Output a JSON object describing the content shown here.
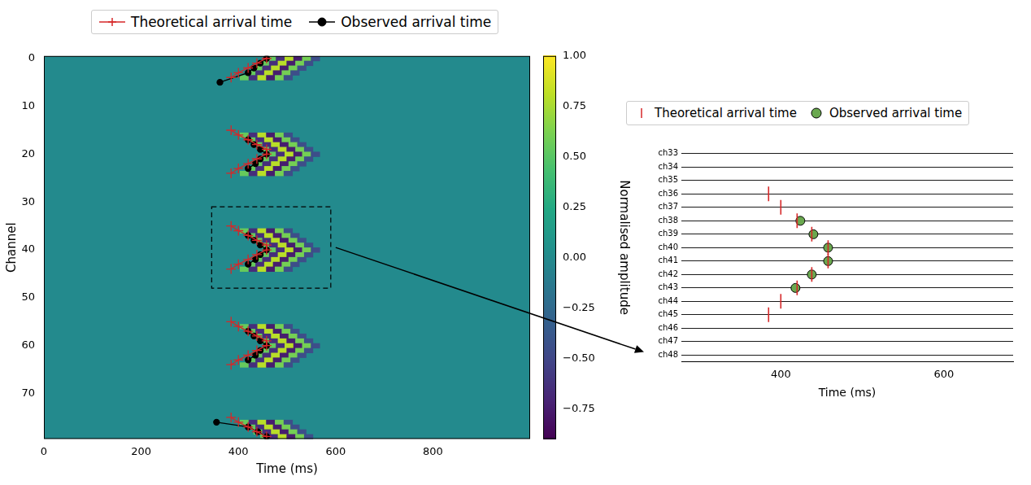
{
  "chart_data": [
    {
      "type": "heatmap",
      "xlabel": "Time (ms)",
      "ylabel": "Channel",
      "xlim": [
        0,
        1000
      ],
      "xticks": [
        0,
        200,
        400,
        600,
        800
      ],
      "ylim": [
        79.5,
        -0.5
      ],
      "yticks": [
        0,
        10,
        20,
        30,
        40,
        50,
        60,
        70
      ],
      "legend": "top",
      "fill_value": 0,
      "colorbar": {
        "label": "Normalised amplitude",
        "range": [
          -0.9,
          1
        ],
        "ticks": [
          {
            "value": -0.75,
            "label": "−0.75"
          },
          {
            "value": -0.5,
            "label": "−0.50"
          },
          {
            "value": -0.25,
            "label": "−0.25"
          },
          {
            "value": 0,
            "label": "0.00"
          },
          0.25,
          {
            "value": 0.5,
            "label": "0.50"
          },
          0.75,
          {
            "value": 1,
            "label": "1.00"
          }
        ]
      },
      "cells": [
        {
          "channel": 0,
          "times": [
            468,
            486,
            504,
            522,
            540,
            558
          ],
          "values": [
            0.55,
            -0.65,
            0.8,
            -0.75,
            0.6,
            -0.45
          ]
        },
        {
          "channel": 1,
          "times": [
            454,
            472,
            490,
            508,
            526,
            544
          ],
          "values": [
            0.55,
            -0.65,
            0.8,
            -0.75,
            0.6,
            -0.45
          ]
        },
        {
          "channel": 2,
          "times": [
            440,
            458,
            476,
            494,
            512,
            530
          ],
          "values": [
            0.55,
            -0.65,
            0.8,
            -0.75,
            0.6,
            -0.45
          ]
        },
        {
          "channel": 3,
          "times": [
            426,
            444,
            462,
            480,
            498,
            516
          ],
          "values": [
            0.55,
            -0.65,
            0.8,
            -0.75,
            0.6,
            -0.45
          ]
        },
        {
          "channel": 4,
          "times": [
            412,
            430,
            448,
            466,
            484,
            502
          ],
          "values": [
            0.55,
            -0.65,
            0.8,
            -0.75,
            0.6,
            -0.45
          ]
        },
        {
          "channel": 16,
          "times": [
            412,
            430,
            448,
            466,
            484,
            502
          ],
          "values": [
            0.55,
            -0.65,
            0.8,
            -0.75,
            0.6,
            -0.45
          ]
        },
        {
          "channel": 17,
          "times": [
            426,
            444,
            462,
            480,
            498,
            516
          ],
          "values": [
            0.55,
            -0.65,
            0.8,
            -0.75,
            0.6,
            -0.45
          ]
        },
        {
          "channel": 18,
          "times": [
            440,
            458,
            476,
            494,
            512,
            530
          ],
          "values": [
            0.55,
            -0.65,
            0.8,
            -0.75,
            0.6,
            -0.45
          ]
        },
        {
          "channel": 19,
          "times": [
            454,
            472,
            490,
            508,
            526,
            544
          ],
          "values": [
            0.55,
            -0.65,
            0.8,
            -0.75,
            0.6,
            -0.45
          ]
        },
        {
          "channel": 20,
          "times": [
            468,
            486,
            504,
            522,
            540,
            558
          ],
          "values": [
            0.55,
            -0.65,
            0.8,
            -0.75,
            0.6,
            -0.45
          ]
        },
        {
          "channel": 21,
          "times": [
            454,
            472,
            490,
            508,
            526,
            544
          ],
          "values": [
            0.55,
            -0.65,
            0.8,
            -0.75,
            0.6,
            -0.45
          ]
        },
        {
          "channel": 22,
          "times": [
            440,
            458,
            476,
            494,
            512,
            530
          ],
          "values": [
            0.55,
            -0.65,
            0.8,
            -0.75,
            0.6,
            -0.45
          ]
        },
        {
          "channel": 23,
          "times": [
            426,
            444,
            462,
            480,
            498,
            516
          ],
          "values": [
            0.55,
            -0.65,
            0.8,
            -0.75,
            0.6,
            -0.45
          ]
        },
        {
          "channel": 24,
          "times": [
            412,
            430,
            448,
            466,
            484,
            502
          ],
          "values": [
            0.55,
            -0.65,
            0.8,
            -0.75,
            0.6,
            -0.45
          ]
        },
        {
          "channel": 36,
          "times": [
            412,
            430,
            448,
            466,
            484,
            502
          ],
          "values": [
            0.55,
            -0.65,
            0.8,
            -0.75,
            0.6,
            -0.45
          ]
        },
        {
          "channel": 37,
          "times": [
            426,
            444,
            462,
            480,
            498,
            516
          ],
          "values": [
            0.55,
            -0.65,
            0.8,
            -0.75,
            0.6,
            -0.45
          ]
        },
        {
          "channel": 38,
          "times": [
            440,
            458,
            476,
            494,
            512,
            530
          ],
          "values": [
            0.55,
            -0.65,
            0.8,
            -0.75,
            0.6,
            -0.45
          ]
        },
        {
          "channel": 39,
          "times": [
            454,
            472,
            490,
            508,
            526,
            544
          ],
          "values": [
            0.55,
            -0.65,
            0.8,
            -0.75,
            0.6,
            -0.45
          ]
        },
        {
          "channel": 40,
          "times": [
            468,
            486,
            504,
            522,
            540,
            558
          ],
          "values": [
            0.55,
            -0.65,
            0.8,
            -0.75,
            0.6,
            -0.45
          ]
        },
        {
          "channel": 41,
          "times": [
            454,
            472,
            490,
            508,
            526,
            544
          ],
          "values": [
            0.55,
            -0.65,
            0.8,
            -0.75,
            0.6,
            -0.45
          ]
        },
        {
          "channel": 42,
          "times": [
            440,
            458,
            476,
            494,
            512,
            530
          ],
          "values": [
            0.55,
            -0.65,
            0.8,
            -0.75,
            0.6,
            -0.45
          ]
        },
        {
          "channel": 43,
          "times": [
            426,
            444,
            462,
            480,
            498,
            516
          ],
          "values": [
            0.55,
            -0.65,
            0.8,
            -0.75,
            0.6,
            -0.45
          ]
        },
        {
          "channel": 44,
          "times": [
            412,
            430,
            448,
            466,
            484,
            502
          ],
          "values": [
            0.55,
            -0.65,
            0.8,
            -0.75,
            0.6,
            -0.45
          ]
        },
        {
          "channel": 56,
          "times": [
            412,
            430,
            448,
            466,
            484,
            502
          ],
          "values": [
            0.55,
            -0.65,
            0.8,
            -0.75,
            0.6,
            -0.45
          ]
        },
        {
          "channel": 57,
          "times": [
            426,
            444,
            462,
            480,
            498,
            516
          ],
          "values": [
            0.55,
            -0.65,
            0.8,
            -0.75,
            0.6,
            -0.45
          ]
        },
        {
          "channel": 58,
          "times": [
            440,
            458,
            476,
            494,
            512,
            530
          ],
          "values": [
            0.55,
            -0.65,
            0.8,
            -0.75,
            0.6,
            -0.45
          ]
        },
        {
          "channel": 59,
          "times": [
            454,
            472,
            490,
            508,
            526,
            544
          ],
          "values": [
            0.55,
            -0.65,
            0.8,
            -0.75,
            0.6,
            -0.45
          ]
        },
        {
          "channel": 60,
          "times": [
            468,
            486,
            504,
            522,
            540,
            558
          ],
          "values": [
            0.55,
            -0.65,
            0.8,
            -0.75,
            0.6,
            -0.45
          ]
        },
        {
          "channel": 61,
          "times": [
            454,
            472,
            490,
            508,
            526,
            544
          ],
          "values": [
            0.55,
            -0.65,
            0.8,
            -0.75,
            0.6,
            -0.45
          ]
        },
        {
          "channel": 62,
          "times": [
            440,
            458,
            476,
            494,
            512,
            530
          ],
          "values": [
            0.55,
            -0.65,
            0.8,
            -0.75,
            0.6,
            -0.45
          ]
        },
        {
          "channel": 63,
          "times": [
            426,
            444,
            462,
            480,
            498,
            516
          ],
          "values": [
            0.55,
            -0.65,
            0.8,
            -0.75,
            0.6,
            -0.45
          ]
        },
        {
          "channel": 64,
          "times": [
            412,
            430,
            448,
            466,
            484,
            502
          ],
          "values": [
            0.55,
            -0.65,
            0.8,
            -0.75,
            0.6,
            -0.45
          ]
        },
        {
          "channel": 76,
          "times": [
            412,
            430,
            448,
            466,
            484,
            502
          ],
          "values": [
            0.55,
            -0.65,
            0.8,
            -0.75,
            0.6,
            -0.45
          ]
        },
        {
          "channel": 77,
          "times": [
            426,
            444,
            462,
            480,
            498,
            516
          ],
          "values": [
            0.55,
            -0.65,
            0.8,
            -0.75,
            0.6,
            -0.45
          ]
        },
        {
          "channel": 78,
          "times": [
            440,
            458,
            476,
            494,
            512,
            530
          ],
          "values": [
            0.55,
            -0.65,
            0.8,
            -0.75,
            0.6,
            -0.45
          ]
        },
        {
          "channel": 79,
          "times": [
            454,
            472,
            490,
            508,
            526,
            544
          ],
          "values": [
            0.55,
            -0.65,
            0.8,
            -0.75,
            0.6,
            -0.45
          ]
        }
      ],
      "zoom_box": {
        "x": [
          345,
          590
        ],
        "y": [
          31,
          48
        ]
      },
      "series": [
        {
          "name": "Theoretical arrival time",
          "color": "#d62728",
          "marker": "cross",
          "line_style": "solid",
          "segments": [
            {
              "x": [
                458,
                438,
                420,
                400,
                385
              ],
              "y": [
                0,
                1,
                2,
                3,
                4
              ]
            },
            {
              "x": [
                385,
                400,
                420,
                438,
                458,
                458,
                438,
                420,
                400,
                385
              ],
              "y": [
                15,
                16,
                17,
                18,
                19,
                20,
                21,
                22,
                23,
                24
              ]
            },
            {
              "x": [
                385,
                400,
                420,
                438,
                458,
                458,
                438,
                420,
                400,
                385
              ],
              "y": [
                35,
                36,
                37,
                38,
                39,
                40,
                41,
                42,
                43,
                44
              ]
            },
            {
              "x": [
                385,
                400,
                420,
                438,
                458,
                458,
                438,
                420,
                400,
                385
              ],
              "y": [
                55,
                56,
                57,
                58,
                59,
                60,
                61,
                62,
                63,
                64
              ]
            },
            {
              "x": [
                385,
                400,
                420,
                438,
                458
              ],
              "y": [
                75,
                76,
                77,
                78,
                79
              ]
            }
          ]
        },
        {
          "name": "Observed arrival time",
          "color": "#000000",
          "marker": "circle",
          "line_style": "solid",
          "segments": [
            {
              "x": [
                458,
                445,
                432,
                420,
                362
              ],
              "y": [
                0,
                1,
                2,
                3,
                5
              ]
            },
            {
              "x": [
                420,
                432,
                445,
                458,
                445,
                435,
                420
              ],
              "y": [
                17,
                18,
                19,
                20,
                21,
                22,
                23
              ]
            },
            {
              "x": [
                420,
                432,
                445,
                458,
                445,
                435,
                420
              ],
              "y": [
                37,
                38,
                39,
                40,
                41,
                42,
                43
              ]
            },
            {
              "x": [
                420,
                432,
                445,
                458,
                445,
                435,
                420
              ],
              "y": [
                57,
                58,
                59,
                60,
                61,
                62,
                63
              ]
            },
            {
              "x": [
                355,
                420,
                440,
                458
              ],
              "y": [
                76,
                77,
                78,
                79
              ]
            }
          ]
        }
      ]
    },
    {
      "type": "scatter",
      "xlabel": "Time (ms)",
      "categories": [
        "ch33",
        "ch34",
        "ch35",
        "ch36",
        "ch37",
        "ch38",
        "ch39",
        "ch40",
        "ch41",
        "ch42",
        "ch43",
        "ch44",
        "ch45",
        "ch46",
        "ch47",
        "ch48"
      ],
      "xlim": [
        278,
        685
      ],
      "xticks": [
        400,
        600
      ],
      "grid": true,
      "legend": "top",
      "series": [
        {
          "name": "Theoretical arrival time",
          "color": "#d62728",
          "marker": "line",
          "values": [
            null,
            null,
            null,
            385,
            400,
            420,
            438,
            458,
            458,
            438,
            420,
            400,
            385,
            null,
            null,
            null
          ]
        },
        {
          "name": "Observed arrival time",
          "color": "#6aa84f",
          "marker": "circle",
          "values": [
            null,
            null,
            null,
            null,
            null,
            424,
            440,
            458,
            458,
            438,
            418,
            null,
            null,
            null,
            null,
            null
          ]
        }
      ]
    }
  ]
}
